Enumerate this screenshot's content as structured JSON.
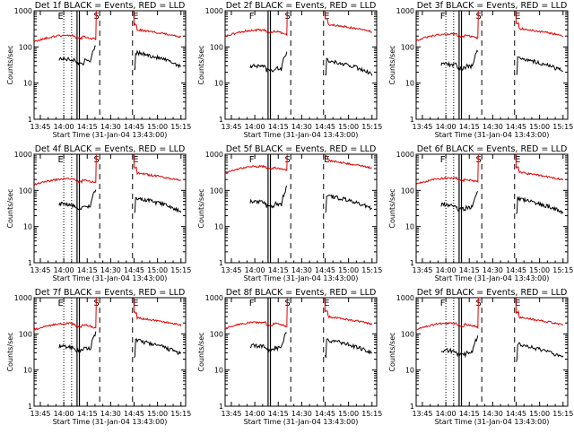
{
  "figure": {
    "x_axis_label": "Start Time (31-Jan-04 13:43:00)",
    "y_axis_label": "Counts/sec"
  },
  "chart_data": [
    {
      "type": "line",
      "title": "Det 1f BLACK = Events, RED = LLD",
      "xlabel": "Start Time (31-Jan-04 13:43:00)",
      "ylabel": "Counts/sec",
      "y_scale": "log",
      "x_ticks": [
        "13:45",
        "14:00",
        "14:15",
        "14:30",
        "14:45",
        "15:00",
        "15:15"
      ],
      "y_ticks": [
        "1",
        "10",
        "100",
        "1000"
      ],
      "xlim_minutes": [
        -2,
        95
      ],
      "ylim": [
        1,
        1000
      ],
      "markers": [
        {
          "label": "E",
          "minute": 15
        },
        {
          "label": "S",
          "minute": 38
        },
        {
          "label": "E",
          "minute": 63
        }
      ],
      "vertical_lines": {
        "dotted": [
          17,
          22
        ],
        "solid": [
          25.5,
          27
        ],
        "dashed": [
          40,
          61
        ]
      },
      "series": [
        {
          "name": "LLD",
          "color": "#dd0000",
          "kind": "lld",
          "profile": 1
        },
        {
          "name": "Events",
          "color": "#000000",
          "kind": "events",
          "profile": 1
        }
      ]
    },
    {
      "type": "line",
      "title": "Det 2f BLACK = Events, RED = LLD",
      "xlabel": "Start Time (31-Jan-04 13:43:00)",
      "ylabel": "Counts/sec",
      "y_scale": "log",
      "x_ticks": [
        "13:45",
        "14:00",
        "14:15",
        "14:30",
        "14:45",
        "15:00",
        "15:15"
      ],
      "y_ticks": [
        "1",
        "10",
        "100",
        "1000"
      ],
      "xlim_minutes": [
        -2,
        95
      ],
      "ylim": [
        1,
        1000
      ],
      "markers": [
        {
          "label": "F",
          "minute": 15
        },
        {
          "label": "S",
          "minute": 38
        },
        {
          "label": "E",
          "minute": 63
        }
      ],
      "vertical_lines": {
        "dotted": [],
        "solid": [
          25.5,
          27
        ],
        "dashed": [
          40,
          61
        ]
      },
      "series": [
        {
          "name": "LLD",
          "color": "#dd0000",
          "kind": "lld",
          "profile": 2
        },
        {
          "name": "Events",
          "color": "#000000",
          "kind": "events",
          "profile": 2
        }
      ]
    },
    {
      "type": "line",
      "title": "Det 3f BLACK = Events, RED = LLD",
      "xlabel": "Start Time (31-Jan-04 13:43:00)",
      "ylabel": "Counts/sec",
      "y_scale": "log",
      "x_ticks": [
        "13:45",
        "14:00",
        "14:15",
        "14:30",
        "14:45",
        "15:00",
        "15:15"
      ],
      "y_ticks": [
        "1",
        "10",
        "100",
        "1000"
      ],
      "xlim_minutes": [
        -2,
        95
      ],
      "ylim": [
        1,
        1000
      ],
      "markers": [
        {
          "label": "F",
          "minute": 15
        },
        {
          "label": "S",
          "minute": 38
        },
        {
          "label": "E",
          "minute": 63
        }
      ],
      "vertical_lines": {
        "dotted": [
          17,
          22
        ],
        "solid": [
          25.5,
          27
        ],
        "dashed": [
          40,
          61
        ]
      },
      "series": [
        {
          "name": "LLD",
          "color": "#dd0000",
          "kind": "lld",
          "profile": 3
        },
        {
          "name": "Events",
          "color": "#000000",
          "kind": "events",
          "profile": 3
        }
      ]
    },
    {
      "type": "line",
      "title": "Det 4f BLACK = Events, RED = LLD",
      "xlabel": "Start Time (31-Jan-04 13:43:00)",
      "ylabel": "Counts/sec",
      "y_scale": "log",
      "x_ticks": [
        "13:45",
        "14:00",
        "14:15",
        "14:30",
        "14:45",
        "15:00",
        "15:15"
      ],
      "y_ticks": [
        "1",
        "10",
        "100",
        "1000"
      ],
      "xlim_minutes": [
        -2,
        95
      ],
      "ylim": [
        1,
        1000
      ],
      "markers": [
        {
          "label": "E",
          "minute": 15
        },
        {
          "label": "S",
          "minute": 38
        },
        {
          "label": "E",
          "minute": 63
        }
      ],
      "vertical_lines": {
        "dotted": [
          17,
          22
        ],
        "solid": [
          25.5,
          27
        ],
        "dashed": [
          40,
          61
        ]
      },
      "series": [
        {
          "name": "LLD",
          "color": "#dd0000",
          "kind": "lld",
          "profile": 4
        },
        {
          "name": "Events",
          "color": "#000000",
          "kind": "events",
          "profile": 4
        }
      ]
    },
    {
      "type": "line",
      "title": "Det 5f BLACK = Events, RED = LLD",
      "xlabel": "Start Time (31-Jan-04 13:43:00)",
      "ylabel": "Counts/sec",
      "y_scale": "log",
      "x_ticks": [
        "13:45",
        "14:00",
        "14:15",
        "14:30",
        "14:45",
        "15:00",
        "15:15"
      ],
      "y_ticks": [
        "1",
        "10",
        "100",
        "1000"
      ],
      "xlim_minutes": [
        -2,
        95
      ],
      "ylim": [
        1,
        1000
      ],
      "markers": [
        {
          "label": "F",
          "minute": 15
        },
        {
          "label": "S",
          "minute": 38
        },
        {
          "label": "E",
          "minute": 63
        }
      ],
      "vertical_lines": {
        "dotted": [],
        "solid": [
          25.5,
          27
        ],
        "dashed": [
          40,
          61
        ]
      },
      "series": [
        {
          "name": "LLD",
          "color": "#dd0000",
          "kind": "lld",
          "profile": 5
        },
        {
          "name": "Events",
          "color": "#000000",
          "kind": "events",
          "profile": 5
        }
      ]
    },
    {
      "type": "line",
      "title": "Det 6f BLACK = Events, RED = LLD",
      "xlabel": "Start Time (31-Jan-04 13:43:00)",
      "ylabel": "Counts/sec",
      "y_scale": "log",
      "x_ticks": [
        "13:45",
        "14:00",
        "14:15",
        "14:30",
        "14:45",
        "15:00",
        "15:15"
      ],
      "y_ticks": [
        "1",
        "10",
        "100",
        "1000"
      ],
      "xlim_minutes": [
        -2,
        95
      ],
      "ylim": [
        1,
        1000
      ],
      "markers": [
        {
          "label": "F",
          "minute": 15
        },
        {
          "label": "S",
          "minute": 38
        },
        {
          "label": "E",
          "minute": 63
        }
      ],
      "vertical_lines": {
        "dotted": [
          17,
          22
        ],
        "solid": [
          25.5,
          27
        ],
        "dashed": [
          40,
          61
        ]
      },
      "series": [
        {
          "name": "LLD",
          "color": "#dd0000",
          "kind": "lld",
          "profile": 6
        },
        {
          "name": "Events",
          "color": "#000000",
          "kind": "events",
          "profile": 6
        }
      ]
    },
    {
      "type": "line",
      "title": "Det 7f BLACK = Events, RED = LLD",
      "xlabel": "Start Time (31-Jan-04 13:43:00)",
      "ylabel": "Counts/sec",
      "y_scale": "log",
      "x_ticks": [
        "13:45",
        "14:00",
        "14:15",
        "14:30",
        "14:45",
        "15:00",
        "15:15"
      ],
      "y_ticks": [
        "1",
        "10",
        "100",
        "1000"
      ],
      "xlim_minutes": [
        -2,
        95
      ],
      "ylim": [
        1,
        1000
      ],
      "markers": [
        {
          "label": "E",
          "minute": 15
        },
        {
          "label": "S",
          "minute": 38
        },
        {
          "label": "E",
          "minute": 63
        }
      ],
      "vertical_lines": {
        "dotted": [
          17,
          22
        ],
        "solid": [
          25.5,
          27
        ],
        "dashed": [
          40,
          61
        ]
      },
      "series": [
        {
          "name": "LLD",
          "color": "#dd0000",
          "kind": "lld",
          "profile": 7
        },
        {
          "name": "Events",
          "color": "#000000",
          "kind": "events",
          "profile": 7
        }
      ]
    },
    {
      "type": "line",
      "title": "Det 8f BLACK = Events, RED = LLD",
      "xlabel": "Start Time (31-Jan-04 13:43:00)",
      "ylabel": "Counts/sec",
      "y_scale": "log",
      "x_ticks": [
        "13:45",
        "14:00",
        "14:15",
        "14:30",
        "14:45",
        "15:00",
        "15:15"
      ],
      "y_ticks": [
        "1",
        "10",
        "100",
        "1000"
      ],
      "xlim_minutes": [
        -2,
        95
      ],
      "ylim": [
        1,
        1000
      ],
      "markers": [
        {
          "label": "F",
          "minute": 15
        },
        {
          "label": "S",
          "minute": 38
        },
        {
          "label": "E",
          "minute": 63
        }
      ],
      "vertical_lines": {
        "dotted": [],
        "solid": [
          25.5,
          27
        ],
        "dashed": [
          40,
          61
        ]
      },
      "series": [
        {
          "name": "LLD",
          "color": "#dd0000",
          "kind": "lld",
          "profile": 8
        },
        {
          "name": "Events",
          "color": "#000000",
          "kind": "events",
          "profile": 8
        }
      ]
    },
    {
      "type": "line",
      "title": "Det 9f BLACK = Events, RED = LLD",
      "xlabel": "Start Time (31-Jan-04 13:43:00)",
      "ylabel": "Counts/sec",
      "y_scale": "log",
      "x_ticks": [
        "13:45",
        "14:00",
        "14:15",
        "14:30",
        "14:45",
        "15:00",
        "15:15"
      ],
      "y_ticks": [
        "1",
        "10",
        "100",
        "1000"
      ],
      "xlim_minutes": [
        -2,
        95
      ],
      "ylim": [
        1,
        1000
      ],
      "markers": [
        {
          "label": "F",
          "minute": 15
        },
        {
          "label": "S",
          "minute": 38
        },
        {
          "label": "E",
          "minute": 63
        }
      ],
      "vertical_lines": {
        "dotted": [
          17,
          22
        ],
        "solid": [
          25.5,
          27
        ],
        "dashed": [
          40,
          61
        ]
      },
      "series": [
        {
          "name": "LLD",
          "color": "#dd0000",
          "kind": "lld",
          "profile": 9
        },
        {
          "name": "Events",
          "color": "#000000",
          "kind": "events",
          "profile": 9
        }
      ]
    }
  ]
}
